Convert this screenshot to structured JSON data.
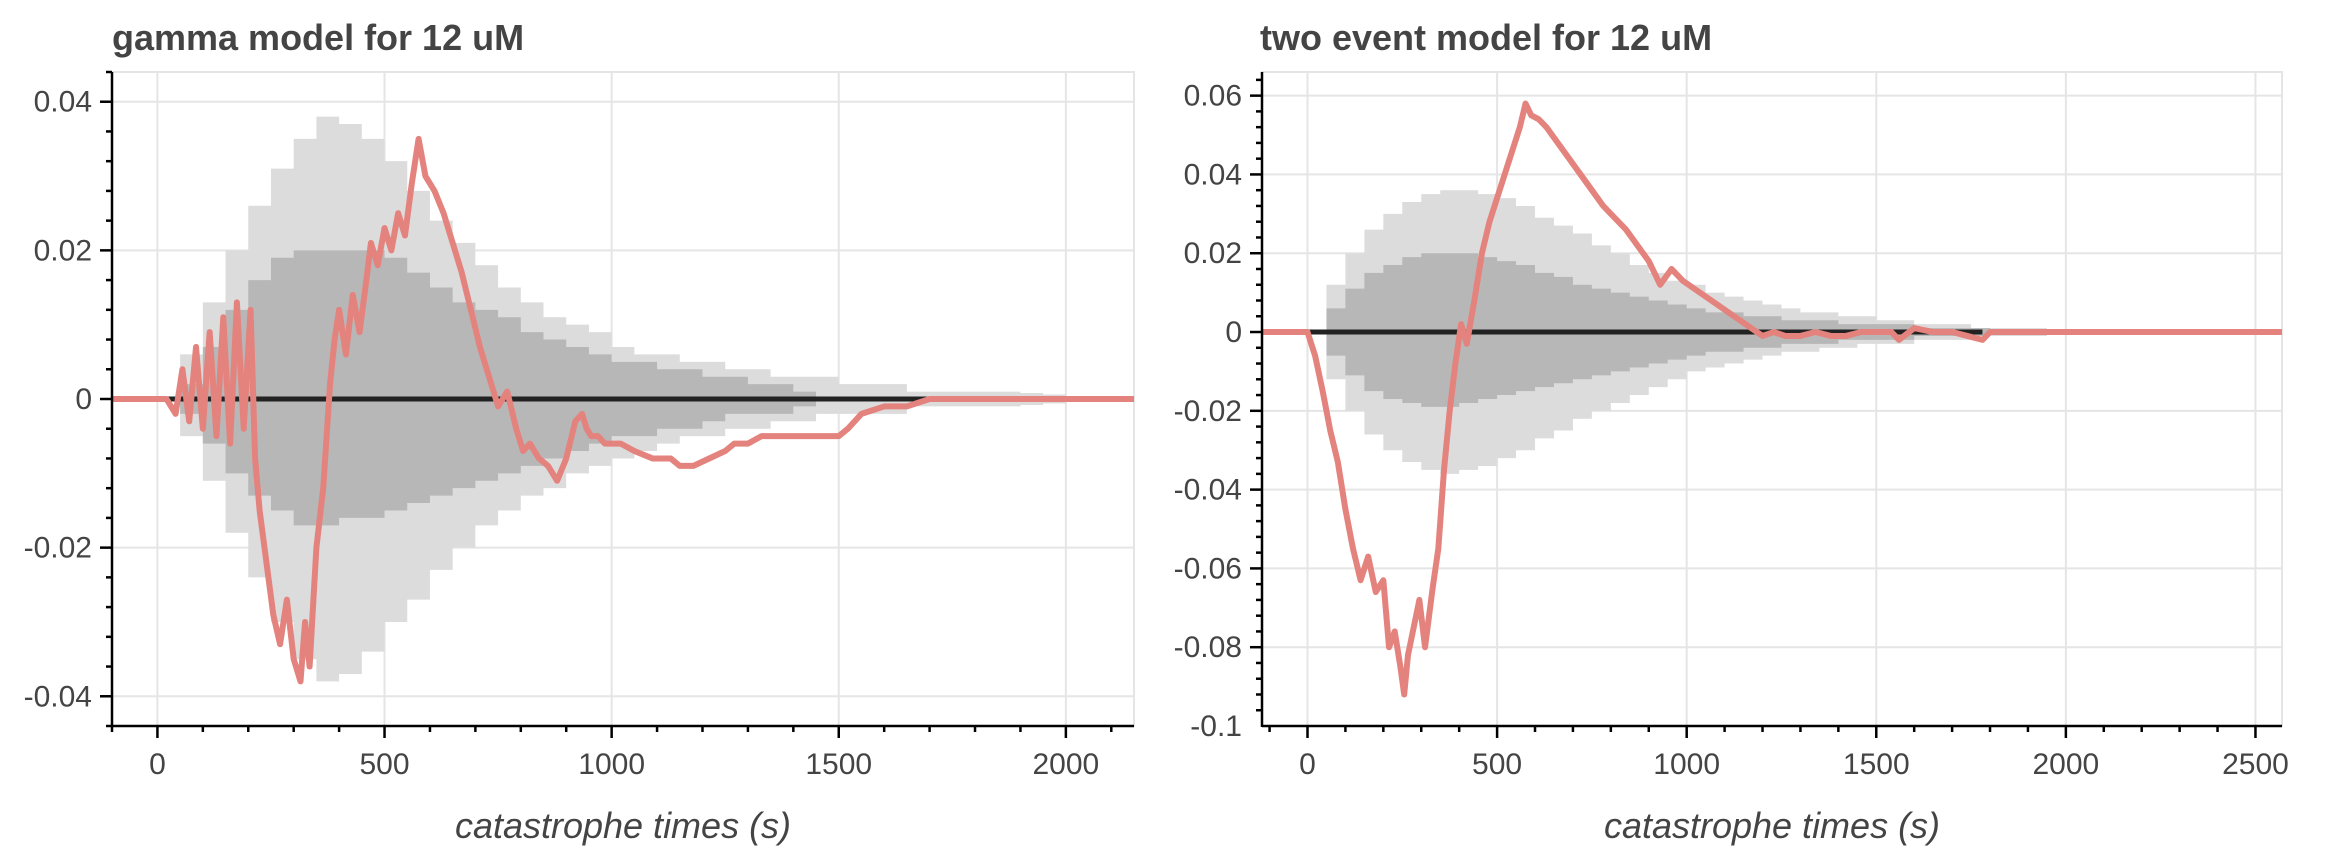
{
  "chart_data": [
    {
      "type": "line",
      "title": "gamma model for 12 uM",
      "xlabel": "catastrophe times (s)",
      "ylabel": "",
      "xlim": [
        -100,
        2150
      ],
      "ylim": [
        -0.044,
        0.044
      ],
      "xticks": [
        0,
        500,
        1000,
        1500,
        2000
      ],
      "xtick_labels": [
        "0",
        "500",
        "1000",
        "1500",
        "2000"
      ],
      "yticks": [
        -0.04,
        -0.02,
        0,
        0.02,
        0.04
      ],
      "ytick_labels": [
        "-0.04",
        "-0.02",
        "0",
        "0.02",
        "0.04"
      ],
      "grid": true,
      "colors": {
        "outer_band": "#dcdcdc",
        "inner_band": "#b7b7b7",
        "zero_line": "#222222",
        "series": "#e4837d"
      },
      "bands": [
        {
          "level": "outer",
          "x": [
            0,
            50,
            100,
            150,
            200,
            250,
            300,
            350,
            400,
            450,
            500,
            550,
            600,
            650,
            700,
            750,
            800,
            850,
            900,
            950,
            1000,
            1050,
            1100,
            1150,
            1200,
            1250,
            1300,
            1350,
            1400,
            1450,
            1500,
            1550,
            1600,
            1650,
            1700,
            1750,
            1800,
            1850,
            1900,
            1950,
            2000,
            2050
          ],
          "upper": [
            0,
            0.006,
            0.013,
            0.02,
            0.026,
            0.031,
            0.035,
            0.038,
            0.037,
            0.035,
            0.032,
            0.028,
            0.024,
            0.021,
            0.018,
            0.015,
            0.013,
            0.011,
            0.01,
            0.009,
            0.007,
            0.006,
            0.006,
            0.005,
            0.005,
            0.004,
            0.004,
            0.003,
            0.003,
            0.003,
            0.002,
            0.002,
            0.002,
            0.001,
            0.001,
            0.001,
            0.001,
            0.001,
            0.0008,
            0.0006,
            0.0004,
            0
          ],
          "lower": [
            0,
            -0.005,
            -0.011,
            -0.018,
            -0.024,
            -0.03,
            -0.035,
            -0.038,
            -0.037,
            -0.034,
            -0.03,
            -0.027,
            -0.023,
            -0.02,
            -0.017,
            -0.015,
            -0.013,
            -0.012,
            -0.01,
            -0.009,
            -0.008,
            -0.007,
            -0.006,
            -0.005,
            -0.005,
            -0.004,
            -0.004,
            -0.003,
            -0.003,
            -0.002,
            -0.002,
            -0.002,
            -0.002,
            -0.001,
            -0.001,
            -0.001,
            -0.001,
            -0.001,
            -0.0008,
            -0.0006,
            -0.0004,
            0
          ]
        },
        {
          "level": "inner",
          "x": [
            0,
            50,
            100,
            150,
            200,
            250,
            300,
            350,
            400,
            450,
            500,
            550,
            600,
            650,
            700,
            750,
            800,
            850,
            900,
            950,
            1000,
            1050,
            1100,
            1150,
            1200,
            1250,
            1300,
            1350,
            1400,
            1450
          ],
          "upper": [
            0,
            0.002,
            0.007,
            0.012,
            0.016,
            0.019,
            0.02,
            0.02,
            0.02,
            0.02,
            0.019,
            0.017,
            0.015,
            0.013,
            0.012,
            0.011,
            0.009,
            0.008,
            0.007,
            0.006,
            0.005,
            0.005,
            0.004,
            0.004,
            0.003,
            0.003,
            0.002,
            0.002,
            0.001,
            0
          ],
          "lower": [
            0,
            -0.002,
            -0.006,
            -0.01,
            -0.013,
            -0.015,
            -0.017,
            -0.017,
            -0.016,
            -0.016,
            -0.015,
            -0.014,
            -0.013,
            -0.012,
            -0.011,
            -0.01,
            -0.009,
            -0.008,
            -0.007,
            -0.006,
            -0.005,
            -0.005,
            -0.004,
            -0.004,
            -0.003,
            -0.002,
            -0.002,
            -0.002,
            -0.001,
            0
          ]
        }
      ],
      "zero_line": {
        "x": [
          0,
          1780
        ],
        "y": [
          0,
          0
        ]
      },
      "series": [
        {
          "x": [
            -100,
            20,
            40,
            55,
            70,
            85,
            100,
            115,
            130,
            145,
            160,
            175,
            190,
            205,
            215,
            225,
            240,
            255,
            270,
            285,
            300,
            315,
            325,
            335,
            350,
            365,
            380,
            390,
            400,
            415,
            430,
            445,
            460,
            470,
            485,
            500,
            515,
            530,
            545,
            560,
            575,
            590,
            610,
            630,
            650,
            670,
            690,
            710,
            730,
            750,
            770,
            790,
            805,
            820,
            840,
            860,
            880,
            900,
            920,
            935,
            945,
            955,
            970,
            985,
            1000,
            1020,
            1050,
            1090,
            1130,
            1150,
            1180,
            1250,
            1270,
            1300,
            1330,
            1350,
            1400,
            1450,
            1500,
            1520,
            1550,
            1600,
            1650,
            1700,
            1750,
            1780,
            1800,
            2150
          ],
          "y": [
            0,
            0,
            -0.002,
            0.004,
            -0.003,
            0.007,
            -0.004,
            0.009,
            -0.005,
            0.011,
            -0.006,
            0.013,
            -0.004,
            0.012,
            -0.008,
            -0.015,
            -0.022,
            -0.029,
            -0.033,
            -0.027,
            -0.035,
            -0.038,
            -0.03,
            -0.036,
            -0.02,
            -0.012,
            0.002,
            0.008,
            0.012,
            0.006,
            0.014,
            0.009,
            0.016,
            0.021,
            0.018,
            0.023,
            0.02,
            0.025,
            0.022,
            0.029,
            0.035,
            0.03,
            0.028,
            0.025,
            0.021,
            0.017,
            0.012,
            0.007,
            0.003,
            -0.001,
            0.001,
            -0.004,
            -0.007,
            -0.006,
            -0.008,
            -0.009,
            -0.011,
            -0.008,
            -0.003,
            -0.002,
            -0.004,
            -0.005,
            -0.005,
            -0.006,
            -0.006,
            -0.006,
            -0.007,
            -0.008,
            -0.008,
            -0.009,
            -0.009,
            -0.007,
            -0.006,
            -0.006,
            -0.005,
            -0.005,
            -0.005,
            -0.005,
            -0.005,
            -0.004,
            -0.002,
            -0.001,
            -0.001,
            0,
            0,
            0,
            0,
            0
          ]
        }
      ]
    },
    {
      "type": "line",
      "title": "two event model for 12 uM",
      "xlabel": "catastrophe times (s)",
      "ylabel": "",
      "xlim": [
        -120,
        2570
      ],
      "ylim": [
        -0.1,
        0.066
      ],
      "xticks": [
        0,
        500,
        1000,
        1500,
        2000,
        2500
      ],
      "xtick_labels": [
        "0",
        "500",
        "1000",
        "1500",
        "2000",
        "2500"
      ],
      "yticks": [
        -0.1,
        -0.08,
        -0.06,
        -0.04,
        -0.02,
        0,
        0.02,
        0.04,
        0.06
      ],
      "ytick_labels": [
        "-0.1",
        "-0.08",
        "-0.06",
        "-0.04",
        "-0.02",
        "0",
        "0.02",
        "0.04",
        "0.06"
      ],
      "grid": true,
      "colors": {
        "outer_band": "#dcdcdc",
        "inner_band": "#b7b7b7",
        "zero_line": "#222222",
        "series": "#e4837d"
      },
      "bands": [
        {
          "level": "outer",
          "x": [
            0,
            50,
            100,
            150,
            200,
            250,
            300,
            350,
            400,
            450,
            500,
            550,
            600,
            650,
            700,
            750,
            800,
            850,
            900,
            950,
            1000,
            1050,
            1100,
            1150,
            1200,
            1250,
            1300,
            1350,
            1400,
            1450,
            1500,
            1550,
            1600,
            1650,
            1700,
            1750,
            1800,
            1850,
            1900,
            1950
          ],
          "upper": [
            0,
            0.012,
            0.02,
            0.026,
            0.03,
            0.033,
            0.035,
            0.036,
            0.036,
            0.035,
            0.034,
            0.032,
            0.029,
            0.027,
            0.025,
            0.022,
            0.02,
            0.017,
            0.015,
            0.013,
            0.012,
            0.01,
            0.009,
            0.008,
            0.007,
            0.006,
            0.005,
            0.005,
            0.004,
            0.004,
            0.003,
            0.003,
            0.002,
            0.002,
            0.002,
            0.001,
            0.001,
            0.001,
            0.001,
            0
          ],
          "lower": [
            0,
            -0.012,
            -0.02,
            -0.026,
            -0.03,
            -0.033,
            -0.035,
            -0.036,
            -0.035,
            -0.034,
            -0.032,
            -0.03,
            -0.027,
            -0.025,
            -0.022,
            -0.02,
            -0.018,
            -0.016,
            -0.014,
            -0.012,
            -0.01,
            -0.009,
            -0.008,
            -0.007,
            -0.006,
            -0.005,
            -0.005,
            -0.004,
            -0.004,
            -0.003,
            -0.003,
            -0.003,
            -0.002,
            -0.002,
            -0.002,
            -0.001,
            -0.001,
            -0.001,
            -0.001,
            0
          ]
        },
        {
          "level": "inner",
          "x": [
            0,
            50,
            100,
            150,
            200,
            250,
            300,
            350,
            400,
            450,
            500,
            550,
            600,
            650,
            700,
            750,
            800,
            850,
            900,
            950,
            1000,
            1050,
            1100,
            1150,
            1200,
            1250,
            1300,
            1350,
            1400,
            1450,
            1500,
            1550,
            1600,
            1650,
            1700,
            1750,
            1800
          ],
          "upper": [
            0,
            0.006,
            0.011,
            0.015,
            0.017,
            0.019,
            0.02,
            0.02,
            0.02,
            0.019,
            0.018,
            0.017,
            0.015,
            0.014,
            0.012,
            0.011,
            0.01,
            0.009,
            0.008,
            0.007,
            0.006,
            0.005,
            0.005,
            0.004,
            0.004,
            0.003,
            0.003,
            0.003,
            0.002,
            0.002,
            0.002,
            0.002,
            0.001,
            0.001,
            0.001,
            0.001,
            0
          ],
          "lower": [
            0,
            -0.006,
            -0.011,
            -0.015,
            -0.017,
            -0.018,
            -0.019,
            -0.019,
            -0.018,
            -0.017,
            -0.016,
            -0.015,
            -0.014,
            -0.013,
            -0.012,
            -0.011,
            -0.01,
            -0.009,
            -0.008,
            -0.007,
            -0.006,
            -0.005,
            -0.005,
            -0.004,
            -0.004,
            -0.003,
            -0.003,
            -0.003,
            -0.002,
            -0.002,
            -0.002,
            -0.002,
            -0.001,
            -0.001,
            -0.001,
            -0.001,
            0
          ]
        }
      ],
      "zero_line": {
        "x": [
          0,
          1780
        ],
        "y": [
          0,
          0
        ]
      },
      "series": [
        {
          "x": [
            -120,
            0,
            20,
            40,
            60,
            80,
            100,
            120,
            140,
            160,
            180,
            200,
            215,
            230,
            245,
            255,
            265,
            280,
            295,
            310,
            330,
            345,
            360,
            375,
            390,
            405,
            420,
            440,
            460,
            480,
            500,
            520,
            540,
            560,
            575,
            590,
            610,
            630,
            660,
            690,
            720,
            750,
            780,
            810,
            840,
            870,
            900,
            930,
            960,
            990,
            1020,
            1050,
            1080,
            1110,
            1140,
            1170,
            1200,
            1230,
            1260,
            1300,
            1340,
            1380,
            1420,
            1460,
            1500,
            1540,
            1560,
            1600,
            1650,
            1700,
            1740,
            1780,
            1800,
            2570
          ],
          "y": [
            0,
            0,
            -0.006,
            -0.015,
            -0.025,
            -0.033,
            -0.045,
            -0.055,
            -0.063,
            -0.057,
            -0.066,
            -0.063,
            -0.08,
            -0.076,
            -0.085,
            -0.092,
            -0.082,
            -0.075,
            -0.068,
            -0.08,
            -0.065,
            -0.055,
            -0.035,
            -0.02,
            -0.008,
            0.002,
            -0.003,
            0.008,
            0.02,
            0.028,
            0.034,
            0.04,
            0.046,
            0.052,
            0.058,
            0.055,
            0.054,
            0.052,
            0.048,
            0.044,
            0.04,
            0.036,
            0.032,
            0.029,
            0.026,
            0.022,
            0.018,
            0.012,
            0.016,
            0.013,
            0.011,
            0.009,
            0.007,
            0.005,
            0.003,
            0.001,
            -0.001,
            0,
            -0.001,
            -0.001,
            0,
            -0.001,
            -0.001,
            0,
            0,
            0,
            -0.002,
            0.001,
            0,
            0,
            -0.001,
            -0.002,
            0,
            0
          ]
        }
      ]
    }
  ]
}
